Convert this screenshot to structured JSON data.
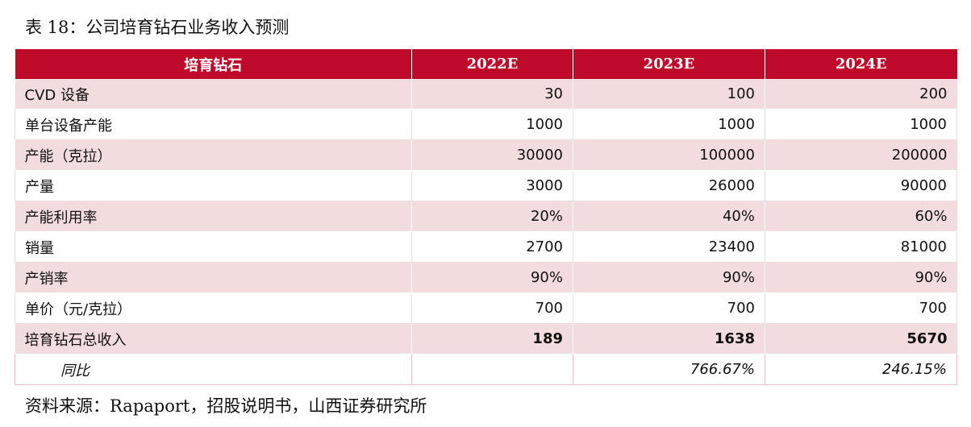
{
  "caption": "表 18：公司培育钻石业务收入预测",
  "source": "资料来源：Rapaport，招股说明书，山西证券研究所",
  "table": {
    "headers": [
      "培育钻石",
      "2022E",
      "2023E",
      "2024E"
    ],
    "rows": [
      {
        "label": "CVD 设备",
        "values": [
          "30",
          "100",
          "200"
        ]
      },
      {
        "label": "单台设备产能",
        "values": [
          "1000",
          "1000",
          "1000"
        ]
      },
      {
        "label": "产能（克拉）",
        "values": [
          "30000",
          "100000",
          "200000"
        ]
      },
      {
        "label": "产量",
        "values": [
          "3000",
          "26000",
          "90000"
        ]
      },
      {
        "label": "产能利用率",
        "values": [
          "20%",
          "40%",
          "60%"
        ]
      },
      {
        "label": "销量",
        "values": [
          "2700",
          "23400",
          "81000"
        ]
      },
      {
        "label": "产销率",
        "values": [
          "90%",
          "90%",
          "90%"
        ]
      },
      {
        "label": "单价（元/克拉）",
        "values": [
          "700",
          "700",
          "700"
        ]
      },
      {
        "label": "培育钻石总收入",
        "values": [
          "189",
          "1638",
          "5670"
        ]
      },
      {
        "label": "同比",
        "values": [
          "",
          "766.67%",
          "246.15%"
        ]
      }
    ]
  }
}
